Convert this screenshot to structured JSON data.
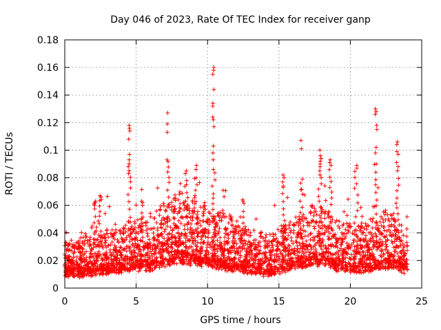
{
  "chart_data": {
    "type": "scatter",
    "title": "Day 046 of 2023, Rate Of TEC Index for receiver ganp",
    "xlabel": "GPS time / hours",
    "ylabel": "ROTI / TECUs",
    "xlim": [
      0,
      25
    ],
    "ylim": [
      0,
      0.18
    ],
    "xticks": [
      0,
      5,
      10,
      15,
      20,
      25
    ],
    "yticks": [
      0,
      0.02,
      0.04,
      0.06,
      0.08,
      0.1,
      0.12,
      0.14,
      0.16,
      0.18
    ],
    "xtick_labels": [
      "0",
      "5",
      "10",
      "15",
      "20",
      "25"
    ],
    "ytick_labels": [
      "0",
      "0.02",
      "0.04",
      "0.06",
      "0.08",
      "0.1",
      "0.12",
      "0.14",
      "0.16",
      "0.18"
    ],
    "grid": true,
    "marker": "+",
    "series_color": "#ff0000",
    "density_profile": [
      [
        0.0,
        0.016,
        0.01
      ],
      [
        1.0,
        0.015,
        0.011
      ],
      [
        2.0,
        0.016,
        0.012
      ],
      [
        3.0,
        0.017,
        0.013
      ],
      [
        4.0,
        0.018,
        0.014
      ],
      [
        5.0,
        0.02,
        0.016
      ],
      [
        6.0,
        0.02,
        0.016
      ],
      [
        7.0,
        0.023,
        0.02
      ],
      [
        8.0,
        0.025,
        0.022
      ],
      [
        9.0,
        0.024,
        0.02
      ],
      [
        10.0,
        0.023,
        0.019
      ],
      [
        11.0,
        0.021,
        0.018
      ],
      [
        12.0,
        0.019,
        0.015
      ],
      [
        13.0,
        0.018,
        0.014
      ],
      [
        14.0,
        0.016,
        0.012
      ],
      [
        15.0,
        0.018,
        0.014
      ],
      [
        16.0,
        0.021,
        0.016
      ],
      [
        17.0,
        0.022,
        0.018
      ],
      [
        18.0,
        0.024,
        0.02
      ],
      [
        19.0,
        0.02,
        0.016
      ],
      [
        20.0,
        0.018,
        0.014
      ],
      [
        21.0,
        0.019,
        0.015
      ],
      [
        22.0,
        0.021,
        0.017
      ],
      [
        23.0,
        0.022,
        0.018
      ],
      [
        24.0,
        0.017,
        0.013
      ]
    ],
    "point_count": 9000,
    "x_range": [
      0,
      24
    ],
    "bursts": [
      {
        "x": 2.1,
        "values": [
          0.063,
          0.062,
          0.062,
          0.061,
          0.06
        ]
      },
      {
        "x": 2.5,
        "values": [
          0.067,
          0.066,
          0.066,
          0.064
        ]
      },
      {
        "x": 4.5,
        "values": [
          0.118,
          0.116,
          0.114,
          0.108,
          0.097,
          0.093,
          0.09,
          0.088,
          0.085,
          0.083
        ]
      },
      {
        "x": 7.2,
        "values": [
          0.127,
          0.119,
          0.113,
          0.093
        ]
      },
      {
        "x": 10.4,
        "values": [
          0.16,
          0.158,
          0.155,
          0.144,
          0.134,
          0.132,
          0.124,
          0.122,
          0.117,
          0.103,
          0.098,
          0.093,
          0.086
        ]
      },
      {
        "x": 16.6,
        "values": [
          0.107,
          0.101,
          0.079
        ]
      },
      {
        "x": 17.9,
        "values": [
          0.1,
          0.096,
          0.094,
          0.092,
          0.09,
          0.088,
          0.085,
          0.082,
          0.08
        ]
      },
      {
        "x": 18.6,
        "values": [
          0.093,
          0.091,
          0.089
        ]
      },
      {
        "x": 20.4,
        "values": [
          0.089,
          0.087
        ]
      },
      {
        "x": 21.8,
        "values": [
          0.13,
          0.128,
          0.126,
          0.118,
          0.115,
          0.102,
          0.098,
          0.09
        ]
      },
      {
        "x": 23.3,
        "values": [
          0.106,
          0.104,
          0.099,
          0.097,
          0.091,
          0.088,
          0.085
        ]
      },
      {
        "x": 8.5,
        "values": [
          0.085,
          0.083,
          0.078,
          0.075
        ]
      },
      {
        "x": 9.2,
        "values": [
          0.089,
          0.086,
          0.08
        ]
      },
      {
        "x": 15.3,
        "values": [
          0.082,
          0.08,
          0.077,
          0.074
        ]
      },
      {
        "x": 12.5,
        "values": [
          0.064,
          0.063
        ]
      },
      {
        "x": 5.4,
        "values": [
          0.063,
          0.062,
          0.06
        ]
      }
    ]
  }
}
